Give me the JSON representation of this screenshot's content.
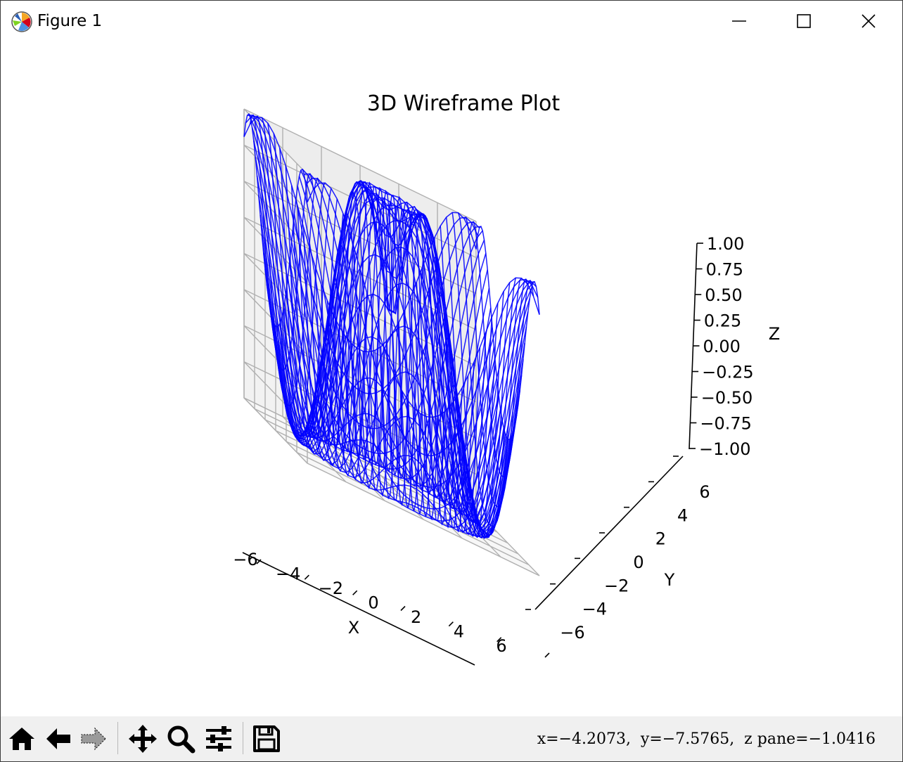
{
  "window": {
    "title": "Figure 1",
    "controls": {
      "minimize": "minimize",
      "maximize": "maximize",
      "close": "close"
    }
  },
  "toolbar": {
    "tools": [
      "home-icon",
      "back-arrow-icon",
      "forward-arrow-icon",
      "pan-icon",
      "zoom-icon",
      "configure-subplots-icon",
      "save-icon"
    ],
    "coordinates": "x=−4.2073,  y=−7.5765,  z pane=−1.0416"
  },
  "chart_data": {
    "type": "wireframe3d",
    "title": "3D Wireframe Plot",
    "xlabel": "X",
    "ylabel": "Y",
    "zlabel": "Z",
    "xlim": [
      -6,
      6
    ],
    "ylim": [
      -6,
      6
    ],
    "zlim": [
      -1,
      1
    ],
    "x_ticks": [
      "−6",
      "−4",
      "−2",
      "0",
      "2",
      "4",
      "6"
    ],
    "y_ticks": [
      "−6",
      "−4",
      "−2",
      "0",
      "2",
      "4",
      "6"
    ],
    "z_ticks": [
      "−1.00",
      "−0.75",
      "−0.50",
      "−0.25",
      "0.00",
      "0.25",
      "0.50",
      "0.75",
      "1.00"
    ],
    "color": "#0000ff",
    "grid": true,
    "surface_function": "z = sin(sqrt(x^2 + y^2))",
    "grid_resolution": 40
  }
}
